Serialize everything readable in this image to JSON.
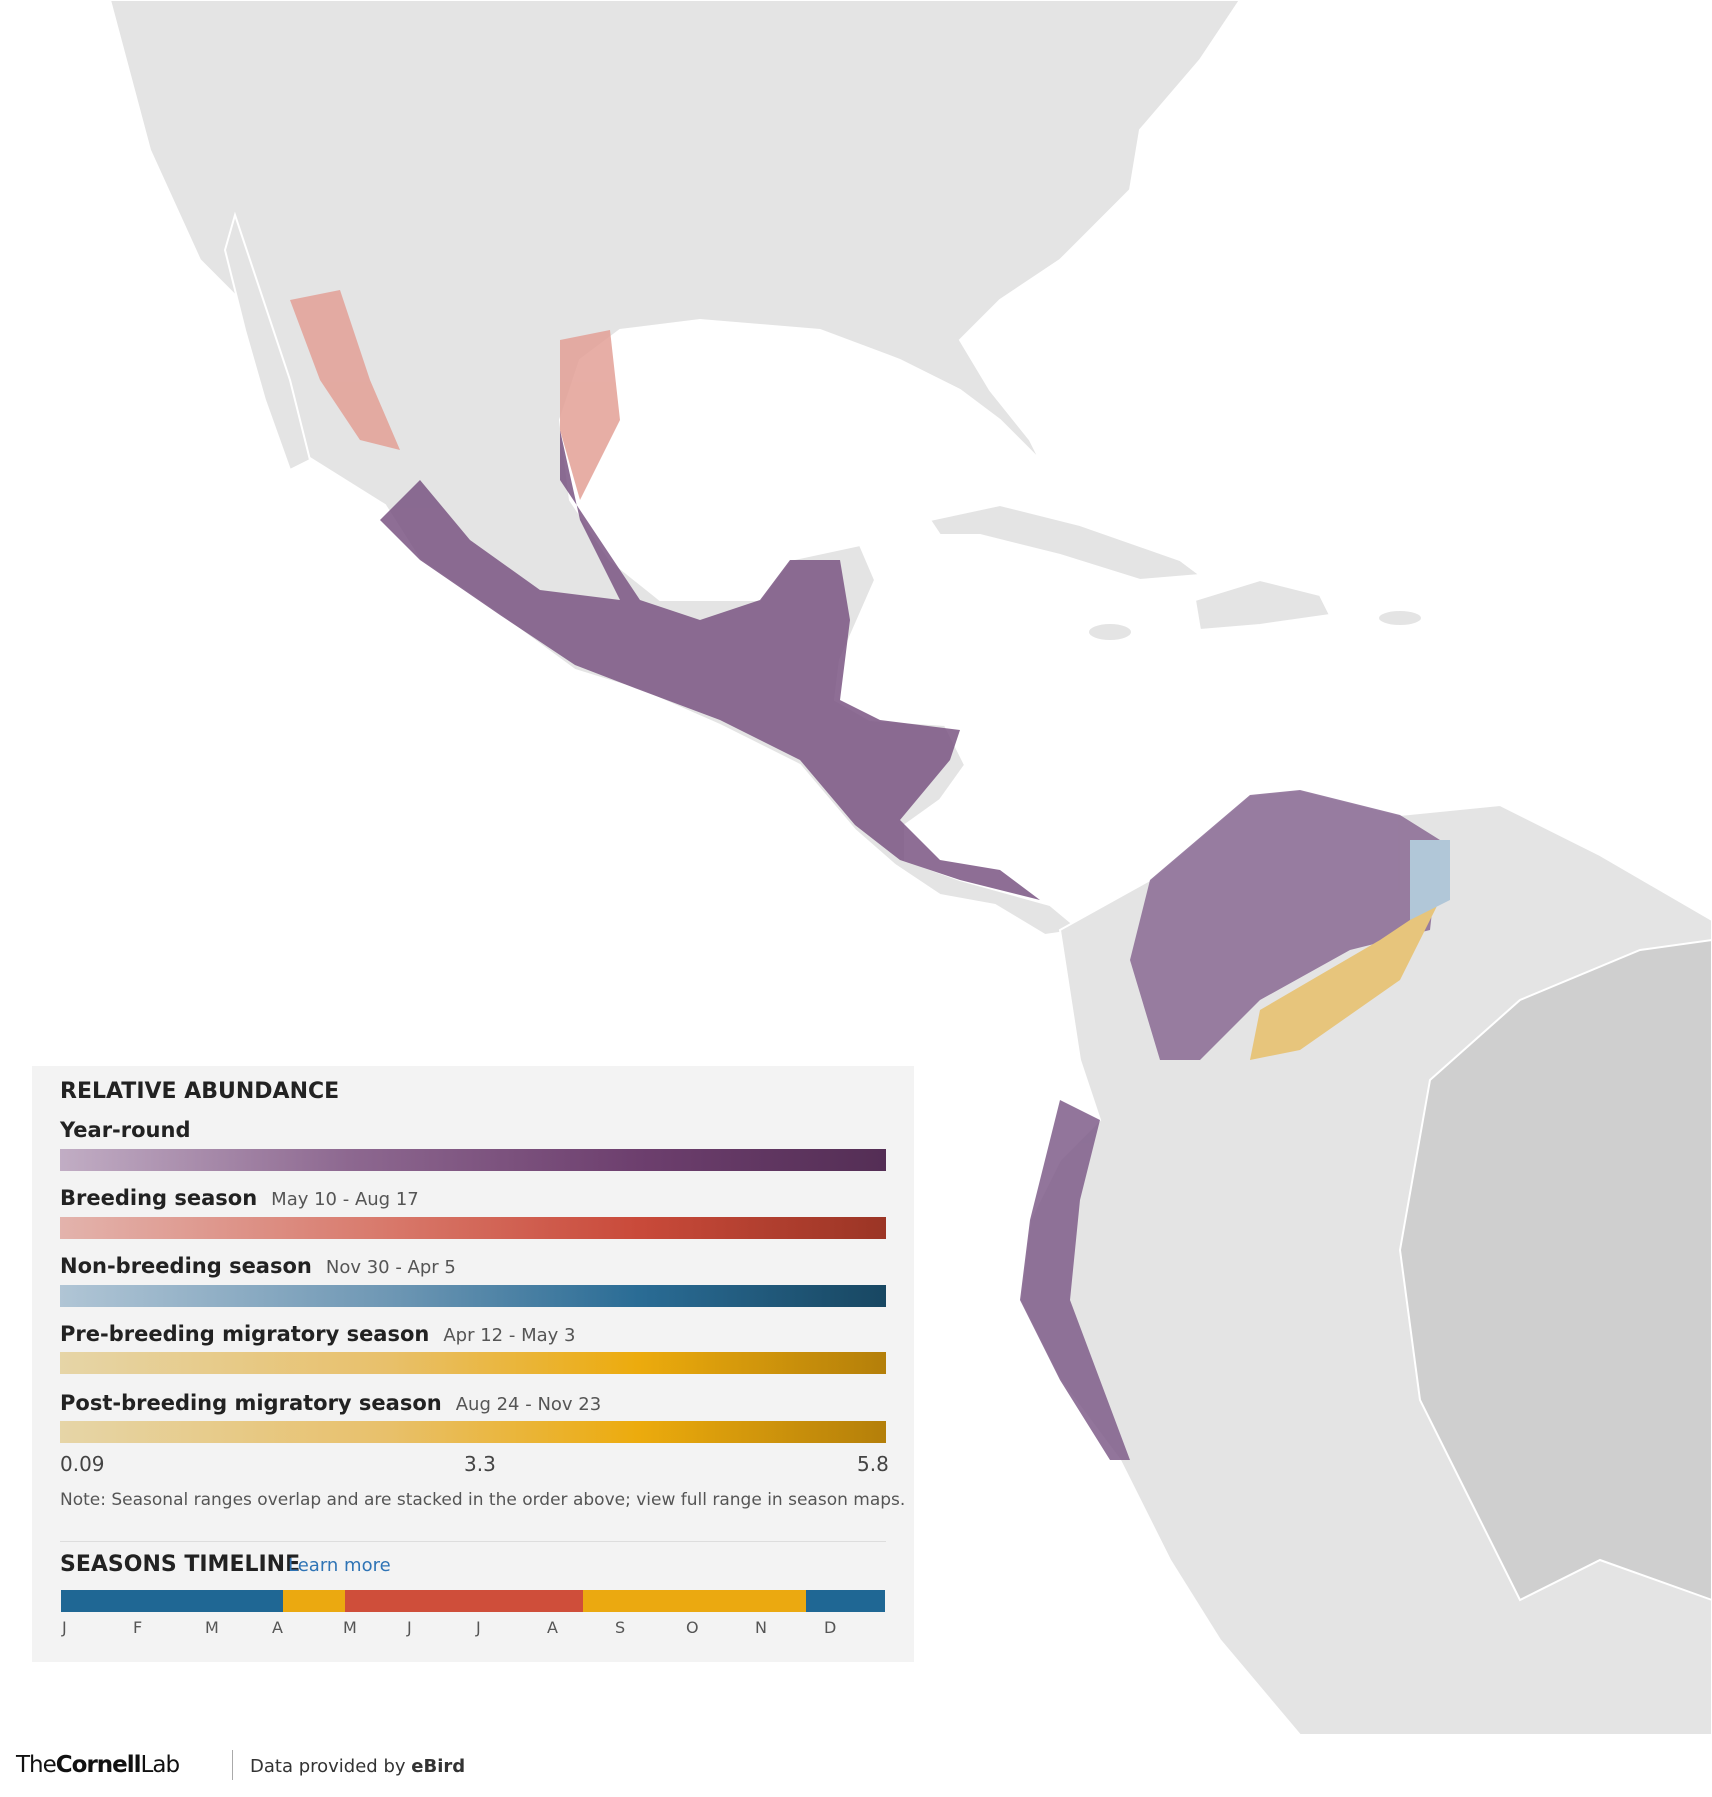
{
  "legend": {
    "title": "RELATIVE ABUNDANCE",
    "seasons": [
      {
        "name": "Year-round",
        "dates": null
      },
      {
        "name": "Breeding season",
        "dates": "May 10 - Aug 17"
      },
      {
        "name": "Non-breeding season",
        "dates": "Nov 30 - Apr 5"
      },
      {
        "name": "Pre-breeding migratory season",
        "dates": "Apr 12 - May 3"
      },
      {
        "name": "Post-breeding migratory season",
        "dates": "Aug 24 - Nov 23"
      }
    ],
    "scale": [
      0.09,
      3.3,
      5.8
    ],
    "note": "Note: Seasonal ranges overlap and are stacked in the order above; view full range in season maps."
  },
  "timeline": {
    "title": "SEASONS TIMELINE",
    "link": "Learn more",
    "months": [
      "J",
      "F",
      "M",
      "A",
      "M",
      "J",
      "J",
      "A",
      "S",
      "O",
      "N",
      "D"
    ]
  },
  "footer": {
    "logo_the": "The",
    "logo_cornell": "Cornell",
    "logo_lab": "Lab",
    "credit": "Data provided by",
    "source": "eBird"
  }
}
